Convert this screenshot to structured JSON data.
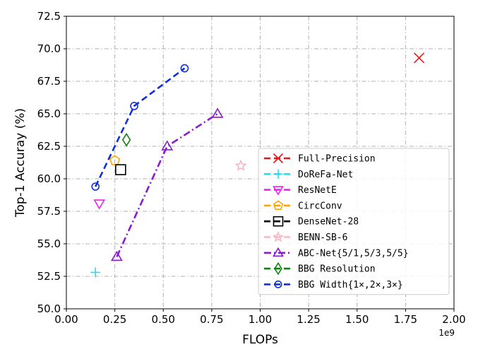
{
  "chart_data": {
    "type": "scatter",
    "xlabel": "FLOPs",
    "ylabel": "Top-1 Accuray  (%)",
    "x_offset_text": "1e9",
    "xlim": [
      0.0,
      2.0
    ],
    "ylim": [
      50.0,
      72.5
    ],
    "x_unit_scale": 1000000000,
    "xticks": [
      0.0,
      0.25,
      0.5,
      0.75,
      1.0,
      1.25,
      1.5,
      1.75,
      2.0
    ],
    "yticks": [
      50.0,
      52.5,
      55.0,
      57.5,
      60.0,
      62.5,
      65.0,
      67.5,
      70.0,
      72.5
    ],
    "xtick_labels": [
      "0.00",
      "0.25",
      "0.50",
      "0.75",
      "1.00",
      "1.25",
      "1.50",
      "1.75",
      "2.00"
    ],
    "ytick_labels": [
      "50.0",
      "52.5",
      "55.0",
      "57.5",
      "60.0",
      "62.5",
      "65.0",
      "67.5",
      "70.0",
      "72.5"
    ],
    "grid": true,
    "legend_position": "lower-right",
    "series": [
      {
        "name": "Full-Precision",
        "color": "#e31a1c",
        "marker": "x",
        "line": "none",
        "x": [
          1.82
        ],
        "y": [
          69.3
        ]
      },
      {
        "name": "DoReFa-Net",
        "color": "#22e0f0",
        "marker": "plus",
        "line": "none",
        "x": [
          0.15
        ],
        "y": [
          52.8
        ]
      },
      {
        "name": "ResNetE",
        "color": "#ee22ee",
        "marker": "triangle-down",
        "line": "none",
        "x": [
          0.17
        ],
        "y": [
          58.1
        ]
      },
      {
        "name": "CircConv",
        "color": "#ffa500",
        "marker": "pentagon",
        "line": "none",
        "x": [
          0.25
        ],
        "y": [
          61.4
        ]
      },
      {
        "name": "DenseNet-28",
        "color": "#000000",
        "marker": "square",
        "line": "none",
        "x": [
          0.28
        ],
        "y": [
          60.7
        ]
      },
      {
        "name": "BENN-SB-6",
        "color": "#f5b8c4",
        "marker": "star",
        "line": "none",
        "x": [
          0.9
        ],
        "y": [
          61.0
        ]
      },
      {
        "name": "ABC-Net{5/1,5/3,5/5}",
        "color": "#8a1ccf",
        "marker": "triangle-up",
        "line": "dashdot",
        "x": [
          0.26,
          0.52,
          0.78
        ],
        "y": [
          54.0,
          62.5,
          65.0
        ]
      },
      {
        "name": "BBG Resolution",
        "color": "#128012",
        "marker": "diamond",
        "line": "none",
        "x": [
          0.31
        ],
        "y": [
          63.0
        ]
      },
      {
        "name": "BBG Width{1×,2×,3×}",
        "color": "#1030e0",
        "marker": "circle",
        "line": "dashed",
        "x": [
          0.15,
          0.35,
          0.61
        ],
        "y": [
          59.4,
          65.6,
          68.5
        ]
      }
    ]
  }
}
